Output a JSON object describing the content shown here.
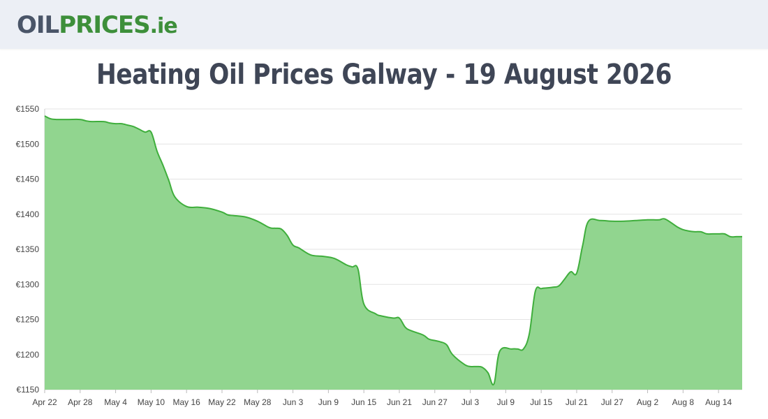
{
  "header": {
    "logo_oil": "OIL",
    "logo_prices": "PRICES",
    "logo_tld": ".ie"
  },
  "page": {
    "title": "Heating Oil Prices Galway - 19 August 2026"
  },
  "colors": {
    "area_fill": "#91d58f",
    "line": "#3fae3c",
    "grid": "#e3e3e3",
    "text": "#444444"
  },
  "chart_data": {
    "type": "area",
    "title": "Heating Oil Prices Galway - 19 August 2026",
    "xlabel": "",
    "ylabel": "",
    "ylim": [
      1150,
      1550
    ],
    "grid": true,
    "y_ticks": [
      1150,
      1200,
      1250,
      1300,
      1350,
      1400,
      1450,
      1500,
      1550
    ],
    "y_tick_labels": [
      "€1150",
      "€1200",
      "€1250",
      "€1300",
      "€1350",
      "€1400",
      "€1450",
      "€1500",
      "€1550"
    ],
    "x_tick_labels": [
      "Apr 22",
      "Apr 28",
      "May 4",
      "May 10",
      "May 16",
      "May 22",
      "May 28",
      "Jun 3",
      "Jun 9",
      "Jun 15",
      "Jun 21",
      "Jun 27",
      "Jul 3",
      "Jul 9",
      "Jul 15",
      "Jul 21",
      "Jul 27",
      "Aug 2",
      "Aug 8",
      "Aug 14"
    ],
    "x": [
      "Apr 22",
      "Apr 23",
      "Apr 24",
      "Apr 26",
      "Apr 28",
      "Apr 29",
      "Apr 30",
      "May 2",
      "May 3",
      "May 4",
      "May 5",
      "May 6",
      "May 7",
      "May 8",
      "May 9",
      "May 10",
      "May 11",
      "May 12",
      "May 13",
      "May 14",
      "May 16",
      "May 18",
      "May 20",
      "May 22",
      "May 23",
      "May 24",
      "May 26",
      "May 28",
      "May 30",
      "May 31",
      "Jun 1",
      "Jun 2",
      "Jun 3",
      "Jun 4",
      "Jun 6",
      "Jun 8",
      "Jun 10",
      "Jun 12",
      "Jun 13",
      "Jun 14",
      "Jun 15",
      "Jun 17",
      "Jun 18",
      "Jun 20",
      "Jun 21",
      "Jun 22",
      "Jun 23",
      "Jun 25",
      "Jun 26",
      "Jun 27",
      "Jun 28",
      "Jun 29",
      "Jun 30",
      "Jul 2",
      "Jul 3",
      "Jul 4",
      "Jul 5",
      "Jul 6",
      "Jul 7",
      "Jul 8",
      "Jul 10",
      "Jul 11",
      "Jul 12",
      "Jul 13",
      "Jul 14",
      "Jul 15",
      "Jul 16",
      "Jul 17",
      "Jul 18",
      "Jul 19",
      "Jul 20",
      "Jul 21",
      "Jul 22",
      "Jul 23",
      "Jul 25",
      "Jul 27",
      "Jul 29",
      "Jul 31",
      "Aug 2",
      "Aug 3",
      "Aug 4",
      "Aug 5",
      "Aug 7",
      "Aug 8",
      "Aug 9",
      "Aug 10",
      "Aug 11",
      "Aug 12",
      "Aug 13",
      "Aug 14",
      "Aug 15",
      "Aug 16",
      "Aug 17",
      "Aug 18"
    ],
    "series": [
      {
        "values": [
          1540,
          1536,
          1535,
          1535,
          1535,
          1533,
          1532,
          1532,
          1530,
          1529,
          1529,
          1527,
          1525,
          1521,
          1517,
          1517,
          1490,
          1470,
          1448,
          1425,
          1411,
          1410,
          1408,
          1403,
          1399,
          1398,
          1396,
          1390,
          1381,
          1380,
          1379,
          1370,
          1356,
          1352,
          1342,
          1340,
          1337,
          1328,
          1325,
          1322,
          1272,
          1258,
          1255,
          1252,
          1252,
          1239,
          1234,
          1228,
          1222,
          1220,
          1218,
          1214,
          1200,
          1186,
          1183,
          1183,
          1182,
          1174,
          1158,
          1205,
          1208,
          1208,
          1208,
          1230,
          1290,
          1294,
          1295,
          1296,
          1298,
          1308,
          1318,
          1316,
          1355,
          1390,
          1391,
          1390,
          1390,
          1391,
          1392,
          1392,
          1392,
          1393,
          1382,
          1378,
          1376,
          1375,
          1375,
          1372,
          1372,
          1372,
          1372,
          1368,
          1368,
          1368
        ]
      }
    ]
  }
}
